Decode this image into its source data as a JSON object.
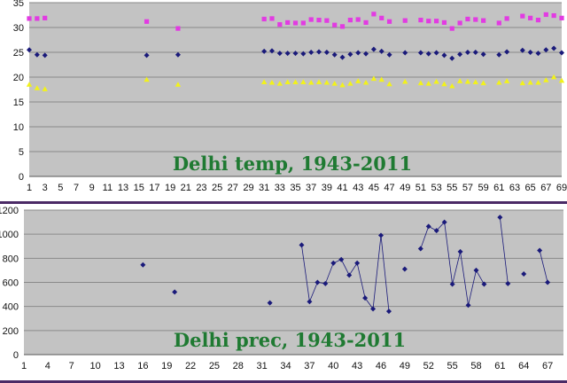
{
  "chart_data": [
    {
      "type": "scatter",
      "title": "Delhi temp, 1943-2011",
      "xlabel": "",
      "ylabel": "",
      "xlim": [
        1,
        69
      ],
      "ylim": [
        0,
        35
      ],
      "yticks": [
        0,
        5,
        10,
        15,
        20,
        25,
        30,
        35
      ],
      "xticks": [
        1,
        3,
        5,
        7,
        9,
        11,
        13,
        15,
        17,
        19,
        21,
        23,
        25,
        27,
        29,
        31,
        33,
        35,
        37,
        39,
        41,
        43,
        45,
        47,
        49,
        51,
        53,
        55,
        57,
        59,
        61,
        63,
        65,
        67,
        69
      ],
      "grid": true,
      "legend": "none",
      "series": [
        {
          "color": "#e23be2",
          "marker": "square",
          "points": [
            [
              1,
              31.8
            ],
            [
              2,
              31.8
            ],
            [
              3,
              31.9
            ],
            [
              16,
              31.2
            ],
            [
              20,
              29.8
            ],
            [
              31,
              31.7
            ],
            [
              32,
              31.8
            ],
            [
              33,
              30.6
            ],
            [
              34,
              31.0
            ],
            [
              35,
              30.9
            ],
            [
              36,
              30.9
            ],
            [
              37,
              31.6
            ],
            [
              38,
              31.5
            ],
            [
              39,
              31.4
            ],
            [
              40,
              30.5
            ],
            [
              41,
              30.2
            ],
            [
              42,
              31.5
            ],
            [
              43,
              31.6
            ],
            [
              44,
              31.0
            ],
            [
              45,
              32.7
            ],
            [
              46,
              31.9
            ],
            [
              47,
              31.2
            ],
            [
              49,
              31.4
            ],
            [
              51,
              31.5
            ],
            [
              52,
              31.3
            ],
            [
              53,
              31.3
            ],
            [
              54,
              31.0
            ],
            [
              55,
              29.8
            ],
            [
              56,
              30.9
            ],
            [
              57,
              31.7
            ],
            [
              58,
              31.6
            ],
            [
              59,
              31.4
            ],
            [
              61,
              30.9
            ],
            [
              62,
              31.8
            ],
            [
              64,
              32.3
            ],
            [
              65,
              31.9
            ],
            [
              66,
              31.5
            ],
            [
              67,
              32.6
            ],
            [
              68,
              32.4
            ],
            [
              69,
              31.9
            ]
          ]
        },
        {
          "color": "#1a1a7a",
          "marker": "diamond",
          "points": [
            [
              1,
              25.5
            ],
            [
              2,
              24.5
            ],
            [
              3,
              24.4
            ],
            [
              16,
              24.4
            ],
            [
              20,
              24.5
            ],
            [
              31,
              25.2
            ],
            [
              32,
              25.3
            ],
            [
              33,
              24.8
            ],
            [
              34,
              24.8
            ],
            [
              35,
              24.8
            ],
            [
              36,
              24.7
            ],
            [
              37,
              25.0
            ],
            [
              38,
              25.1
            ],
            [
              39,
              25.0
            ],
            [
              40,
              24.5
            ],
            [
              41,
              24.0
            ],
            [
              42,
              24.6
            ],
            [
              43,
              24.9
            ],
            [
              44,
              24.7
            ],
            [
              45,
              25.6
            ],
            [
              46,
              25.2
            ],
            [
              47,
              24.5
            ],
            [
              49,
              24.9
            ],
            [
              51,
              24.9
            ],
            [
              52,
              24.7
            ],
            [
              53,
              24.9
            ],
            [
              54,
              24.4
            ],
            [
              55,
              23.8
            ],
            [
              56,
              24.6
            ],
            [
              57,
              25.0
            ],
            [
              58,
              25.0
            ],
            [
              59,
              24.6
            ],
            [
              61,
              24.5
            ],
            [
              62,
              25.1
            ],
            [
              64,
              25.4
            ],
            [
              65,
              25.0
            ],
            [
              66,
              24.8
            ],
            [
              67,
              25.5
            ],
            [
              68,
              25.8
            ],
            [
              69,
              24.9
            ]
          ]
        },
        {
          "color": "#f2f21a",
          "marker": "triangle",
          "points": [
            [
              1,
              18.5
            ],
            [
              2,
              17.8
            ],
            [
              3,
              17.6
            ],
            [
              16,
              19.5
            ],
            [
              20,
              18.5
            ],
            [
              31,
              19.0
            ],
            [
              32,
              18.9
            ],
            [
              33,
              18.7
            ],
            [
              34,
              19.0
            ],
            [
              35,
              19.0
            ],
            [
              36,
              19.0
            ],
            [
              37,
              18.9
            ],
            [
              38,
              19.0
            ],
            [
              39,
              18.9
            ],
            [
              40,
              18.7
            ],
            [
              41,
              18.4
            ],
            [
              42,
              18.7
            ],
            [
              43,
              19.2
            ],
            [
              44,
              18.9
            ],
            [
              45,
              19.7
            ],
            [
              46,
              19.5
            ],
            [
              47,
              18.6
            ],
            [
              49,
              19.1
            ],
            [
              51,
              18.8
            ],
            [
              52,
              18.7
            ],
            [
              53,
              19.1
            ],
            [
              54,
              18.6
            ],
            [
              55,
              18.2
            ],
            [
              56,
              19.2
            ],
            [
              57,
              19.1
            ],
            [
              58,
              19.0
            ],
            [
              59,
              18.8
            ],
            [
              61,
              18.9
            ],
            [
              62,
              19.2
            ],
            [
              64,
              18.8
            ],
            [
              65,
              18.9
            ],
            [
              66,
              18.9
            ],
            [
              67,
              19.4
            ],
            [
              68,
              20.0
            ],
            [
              69,
              19.3
            ]
          ]
        }
      ]
    },
    {
      "type": "line",
      "title": "Delhi prec, 1943-2011",
      "xlabel": "",
      "ylabel": "",
      "xlim": [
        1,
        69
      ],
      "ylim": [
        0,
        1200
      ],
      "yticks": [
        0,
        200,
        400,
        600,
        800,
        1000,
        1200
      ],
      "yticklabels": [
        "0",
        "200",
        "400",
        "600",
        "800",
        "1000",
        "1200"
      ],
      "xticks": [
        1,
        4,
        7,
        10,
        13,
        16,
        19,
        22,
        25,
        28,
        31,
        34,
        37,
        40,
        43,
        46,
        49,
        52,
        55,
        58,
        61,
        64,
        67
      ],
      "grid": true,
      "legend": "none",
      "series": [
        {
          "color": "#1a1a7a",
          "marker": "diamond",
          "segments": [
            [
              [
                16,
                745
              ]
            ],
            [
              [
                20,
                520
              ]
            ],
            [
              [
                32,
                430
              ]
            ],
            [
              [
                36,
                910
              ],
              [
                37,
                440
              ],
              [
                38,
                600
              ],
              [
                39,
                590
              ],
              [
                40,
                760
              ],
              [
                41,
                790
              ],
              [
                42,
                660
              ],
              [
                43,
                760
              ],
              [
                44,
                470
              ],
              [
                45,
                380
              ],
              [
                46,
                990
              ],
              [
                47,
                360
              ]
            ],
            [
              [
                49,
                710
              ]
            ],
            [
              [
                51,
                880
              ],
              [
                52,
                1065
              ],
              [
                53,
                1030
              ],
              [
                54,
                1100
              ],
              [
                55,
                585
              ],
              [
                56,
                855
              ],
              [
                57,
                410
              ],
              [
                58,
                700
              ],
              [
                59,
                585
              ]
            ],
            [
              [
                61,
                1140
              ],
              [
                62,
                590
              ]
            ],
            [
              [
                64,
                670
              ]
            ],
            [
              [
                66,
                865
              ],
              [
                67,
                600
              ]
            ]
          ]
        }
      ]
    }
  ]
}
